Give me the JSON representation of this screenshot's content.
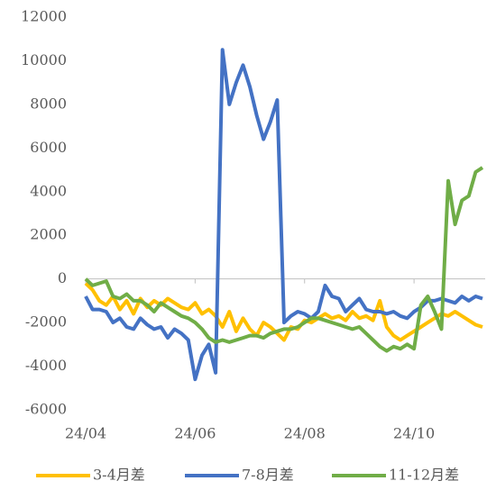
{
  "chart_data": {
    "type": "line",
    "x": [
      0,
      0.125,
      0.25,
      0.375,
      0.5,
      0.625,
      0.75,
      0.875,
      1,
      1.125,
      1.25,
      1.375,
      1.5,
      1.625,
      1.75,
      1.875,
      2,
      2.125,
      2.25,
      2.375,
      2.5,
      2.625,
      2.75,
      2.875,
      3,
      3.125,
      3.25,
      3.375,
      3.5,
      3.625,
      3.75,
      3.875,
      4,
      4.125,
      4.25,
      4.375,
      4.5,
      4.625,
      4.75,
      4.875,
      5,
      5.125,
      5.25,
      5.375,
      5.5,
      5.625,
      5.75,
      5.875,
      6,
      6.125,
      6.25,
      6.375,
      6.5,
      6.625,
      6.75,
      6.875,
      7,
      7.125,
      7.25
    ],
    "xlim": [
      0,
      7.3
    ],
    "xticks": [
      {
        "value": 0,
        "label": "24/04"
      },
      {
        "value": 2,
        "label": "24/06"
      },
      {
        "value": 4,
        "label": "24/08"
      },
      {
        "value": 6,
        "label": "24/10"
      }
    ],
    "ylim": [
      -6000,
      12000
    ],
    "yticks": [
      -6000,
      -4000,
      -2000,
      0,
      2000,
      4000,
      6000,
      8000,
      10000,
      12000
    ],
    "grid": false,
    "legend": "bottom",
    "series": [
      {
        "name": "3-4月差",
        "color": "#FFC000",
        "values": [
          -200,
          -500,
          -1000,
          -1200,
          -800,
          -1400,
          -1000,
          -1600,
          -900,
          -1300,
          -1000,
          -1200,
          -900,
          -1100,
          -1300,
          -1400,
          -1100,
          -1600,
          -1400,
          -1700,
          -2200,
          -1500,
          -2400,
          -1800,
          -2300,
          -2600,
          -2000,
          -2200,
          -2500,
          -2800,
          -2200,
          -2300,
          -1900,
          -2000,
          -1800,
          -1600,
          -1800,
          -1700,
          -1900,
          -1500,
          -1800,
          -1700,
          -1900,
          -1000,
          -2200,
          -2600,
          -2800,
          -2600,
          -2400,
          -2200,
          -2000,
          -1800,
          -1600,
          -1700,
          -1500,
          -1700,
          -1900,
          -2100,
          -2200
        ]
      },
      {
        "name": "7-8月差",
        "color": "#4472C4",
        "values": [
          -800,
          -1400,
          -1400,
          -1500,
          -2000,
          -1800,
          -2200,
          -2300,
          -1800,
          -2100,
          -2300,
          -2200,
          -2700,
          -2300,
          -2500,
          -2800,
          -4600,
          -3500,
          -3000,
          -4300,
          10500,
          8000,
          9000,
          9800,
          8800,
          7500,
          6400,
          7200,
          8200,
          -2000,
          -1700,
          -1500,
          -1600,
          -1800,
          -1500,
          -300,
          -800,
          -900,
          -1500,
          -1200,
          -900,
          -1400,
          -1500,
          -1500,
          -1600,
          -1500,
          -1700,
          -1800,
          -1500,
          -1300,
          -1000,
          -1000,
          -900,
          -1000,
          -1100,
          -800,
          -1000,
          -800,
          -900
        ]
      },
      {
        "name": "11-12月差",
        "color": "#70AD47",
        "values": [
          0,
          -300,
          -200,
          -100,
          -800,
          -900,
          -700,
          -1000,
          -1000,
          -1200,
          -1500,
          -1100,
          -1300,
          -1500,
          -1700,
          -1800,
          -2000,
          -2300,
          -2700,
          -2900,
          -2800,
          -2900,
          -2800,
          -2700,
          -2600,
          -2600,
          -2700,
          -2500,
          -2400,
          -2300,
          -2300,
          -2200,
          -2000,
          -1800,
          -1800,
          -1900,
          -2000,
          -2100,
          -2200,
          -2300,
          -2200,
          -2500,
          -2800,
          -3100,
          -3300,
          -3100,
          -3200,
          -3000,
          -3200,
          -1200,
          -800,
          -1500,
          -2300,
          4500,
          2500,
          3600,
          3800,
          4900,
          5100
        ]
      }
    ]
  }
}
